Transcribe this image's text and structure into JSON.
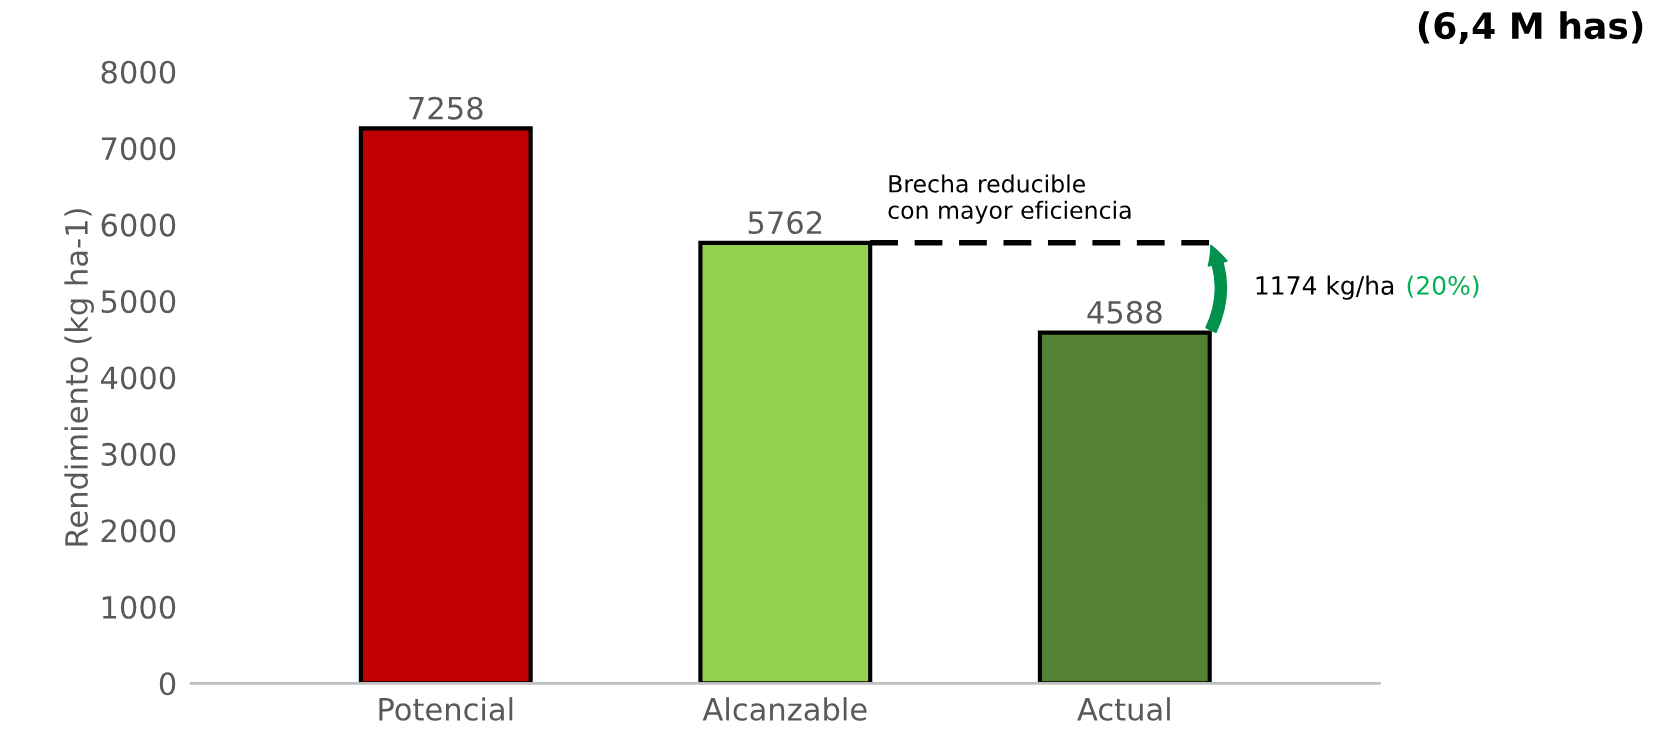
{
  "chart_data": {
    "type": "bar",
    "title": "(6,4 M has)",
    "ylabel": "Rendimiento (kg ha-1)",
    "categories": [
      "Potencial",
      "Alcanzable",
      "Actual"
    ],
    "values": [
      7258,
      5762,
      4588
    ],
    "colors": [
      "#c00000",
      "#92d050",
      "#548235"
    ],
    "data_labels": true,
    "ylim": [
      0,
      8000
    ],
    "yticks": [
      0,
      1000,
      2000,
      3000,
      4000,
      5000,
      6000,
      7000,
      8000
    ],
    "ref_lines": [
      {
        "axis": "y",
        "value": 5762,
        "label": "Brecha reducible\ncon mayor eficiencia",
        "color": "#000000",
        "line_style": "dashed"
      }
    ],
    "annotations": [
      "1174 kg/ha",
      "(20%)"
    ],
    "grid": false
  }
}
